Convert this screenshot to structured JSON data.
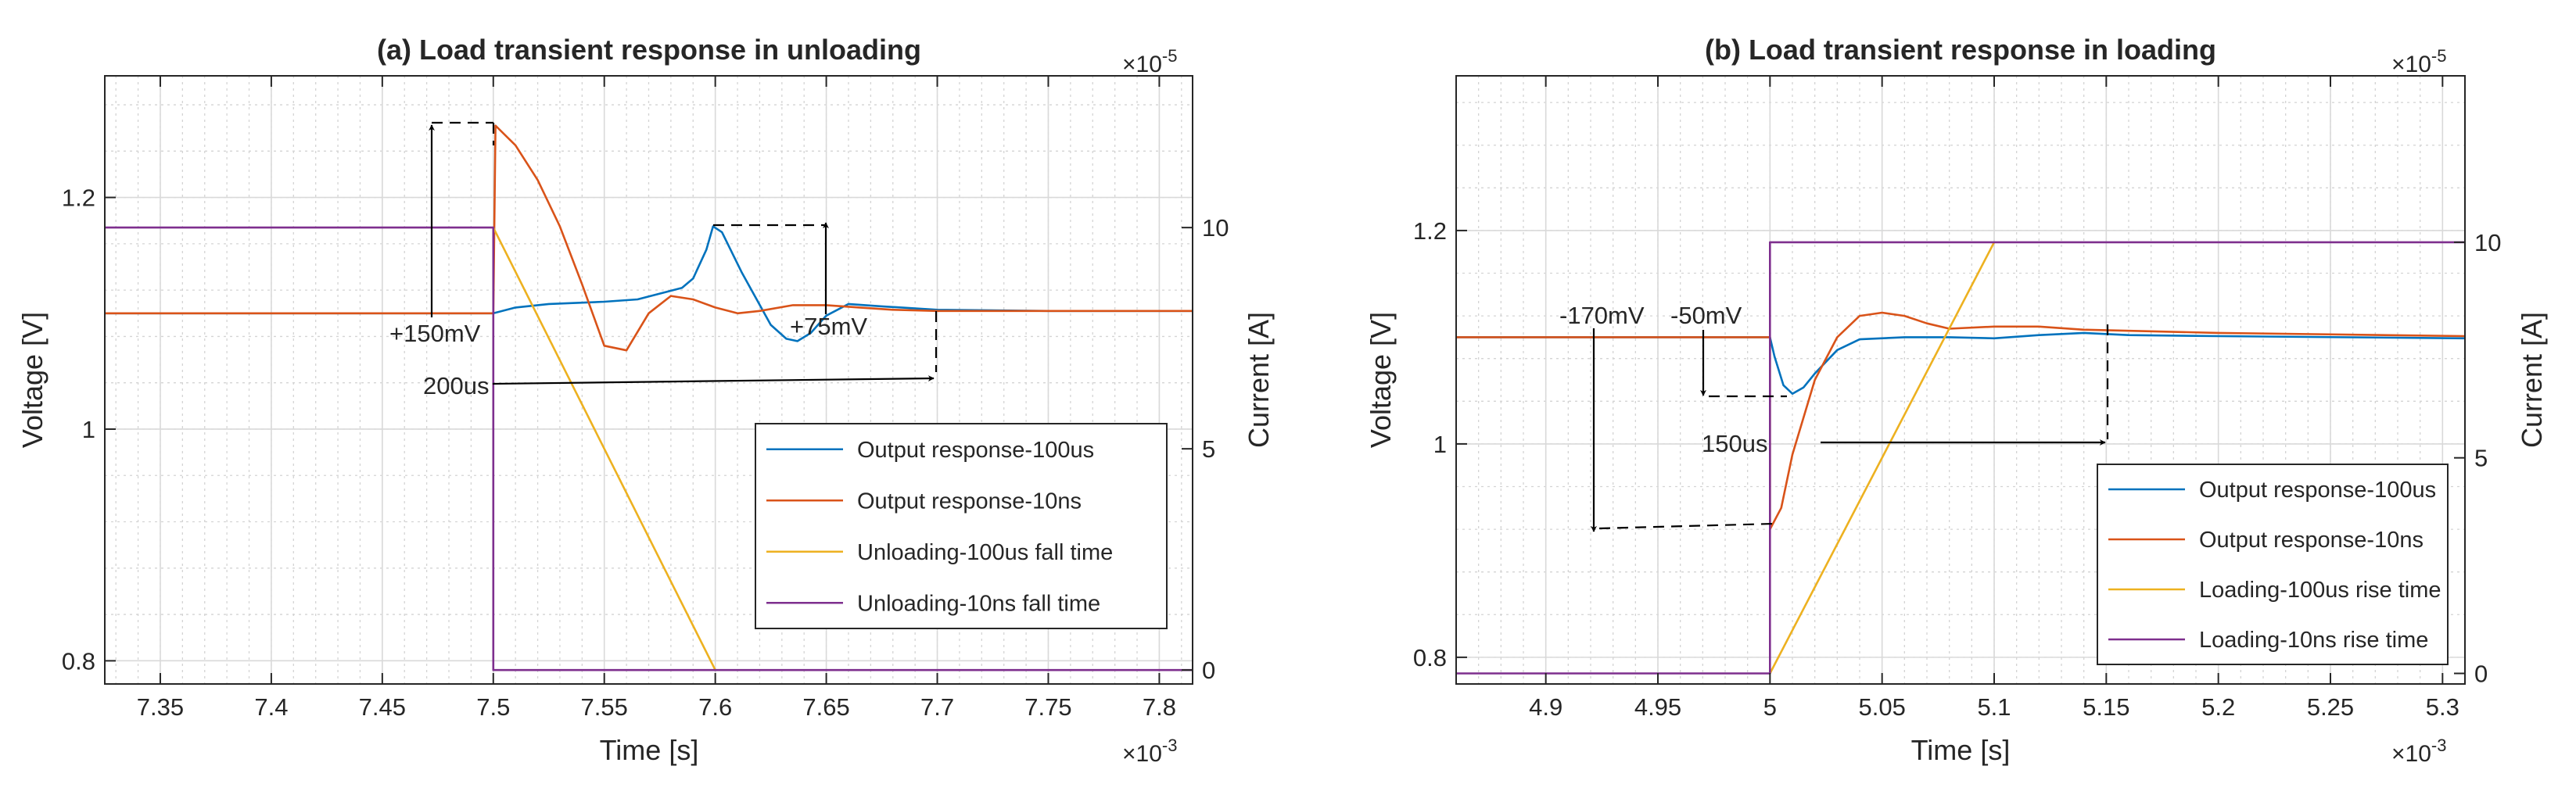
{
  "chart_data": [
    {
      "type": "line",
      "title": "(a) Load transient response in unloading",
      "xlabel": "Time [s]",
      "ylabel_left": "Voltage [V]",
      "ylabel_right": "Current [A]",
      "x_exponent_base": "×10",
      "x_exponent_power": "-3",
      "right_exponent_base": "×10",
      "right_exponent_power": "-5",
      "xlim": [
        7.325,
        7.815
      ],
      "ylim_left": [
        0.78,
        1.305
      ],
      "ylim_right": [
        -0.315,
        13.43
      ],
      "x_ticks": [
        7.35,
        7.4,
        7.45,
        7.5,
        7.55,
        7.6,
        7.65,
        7.7,
        7.75,
        7.8
      ],
      "x_tick_labels": [
        "7.35",
        "7.4",
        "7.45",
        "7.5",
        "7.55",
        "7.6",
        "7.65",
        "7.7",
        "7.75",
        "7.8"
      ],
      "y_left_ticks": [
        0.8,
        1,
        1.2
      ],
      "y_left_tick_labels": [
        "0.8",
        "1",
        "1.2"
      ],
      "y_right_ticks": [
        0,
        5,
        10
      ],
      "y_right_tick_labels": [
        "0",
        "5",
        "10"
      ],
      "legend_position": "bottom-right",
      "series": [
        {
          "name": "Output response-100us",
          "color": "#0072BD",
          "axis": "left",
          "x": [
            7.325,
            7.5,
            7.51,
            7.525,
            7.55,
            7.565,
            7.575,
            7.585,
            7.59,
            7.596,
            7.599,
            7.603,
            7.612,
            7.625,
            7.632,
            7.637,
            7.643,
            7.65,
            7.66,
            7.675,
            7.7,
            7.75,
            7.815
          ],
          "y": [
            1.1,
            1.1,
            1.105,
            1.108,
            1.11,
            1.112,
            1.117,
            1.122,
            1.13,
            1.155,
            1.175,
            1.17,
            1.135,
            1.09,
            1.078,
            1.076,
            1.083,
            1.098,
            1.108,
            1.106,
            1.103,
            1.102,
            1.102
          ]
        },
        {
          "name": "Output response-10ns",
          "color": "#D95319",
          "axis": "left",
          "x": [
            7.325,
            7.5,
            7.501,
            7.51,
            7.52,
            7.53,
            7.54,
            7.55,
            7.56,
            7.57,
            7.58,
            7.59,
            7.6,
            7.61,
            7.62,
            7.635,
            7.65,
            7.665,
            7.68,
            7.7,
            7.75,
            7.815
          ],
          "y": [
            1.1,
            1.1,
            1.262,
            1.245,
            1.215,
            1.175,
            1.125,
            1.072,
            1.068,
            1.1,
            1.115,
            1.112,
            1.105,
            1.1,
            1.102,
            1.107,
            1.107,
            1.105,
            1.103,
            1.102,
            1.102,
            1.102
          ]
        },
        {
          "name": "Unloading-100us fall time",
          "color": "#EDB120",
          "axis": "right",
          "x": [
            7.5,
            7.6
          ],
          "y": [
            10,
            0
          ]
        },
        {
          "name": "Unloading-10ns fall time",
          "color": "#7E2F8E",
          "axis": "right",
          "x": [
            7.325,
            7.5,
            7.5,
            7.815
          ],
          "y": [
            10,
            10,
            0,
            0
          ]
        }
      ],
      "annotations": [
        {
          "label": "+150mV"
        },
        {
          "label": "+75mV"
        },
        {
          "label": "200us"
        }
      ]
    },
    {
      "type": "line",
      "title": "(b) Load transient response in loading",
      "xlabel": "Time [s]",
      "ylabel_left": "Voltage [V]",
      "ylabel_right": "Current [A]",
      "x_exponent_base": "×10",
      "x_exponent_power": "-3",
      "right_exponent_base": "×10",
      "right_exponent_power": "-5",
      "xlim": [
        4.86,
        5.31
      ],
      "ylim_left": [
        0.775,
        1.345
      ],
      "ylim_right": [
        -0.245,
        13.86
      ],
      "x_ticks": [
        4.9,
        4.95,
        5,
        5.05,
        5.1,
        5.15,
        5.2,
        5.25,
        5.3
      ],
      "x_tick_labels": [
        "4.9",
        "4.95",
        "5",
        "5.05",
        "5.1",
        "5.15",
        "5.2",
        "5.25",
        "5.3"
      ],
      "y_left_ticks": [
        0.8,
        1,
        1.2
      ],
      "y_left_tick_labels": [
        "0.8",
        "1",
        "1.2"
      ],
      "y_right_ticks": [
        0,
        5,
        10
      ],
      "y_right_tick_labels": [
        "0",
        "5",
        "10"
      ],
      "legend_position": "bottom-right",
      "series": [
        {
          "name": "Output response-100us",
          "color": "#0072BD",
          "axis": "left",
          "x": [
            4.86,
            5.0,
            5.002,
            5.006,
            5.01,
            5.015,
            5.02,
            5.03,
            5.04,
            5.06,
            5.08,
            5.1,
            5.12,
            5.14,
            5.16,
            5.2,
            5.31
          ],
          "y": [
            1.1,
            1.1,
            1.082,
            1.055,
            1.047,
            1.053,
            1.066,
            1.088,
            1.098,
            1.1,
            1.1,
            1.099,
            1.102,
            1.104,
            1.102,
            1.101,
            1.099
          ]
        },
        {
          "name": "Output response-10ns",
          "color": "#D95319",
          "axis": "left",
          "x": [
            4.86,
            5.0,
            5.0,
            5.005,
            5.01,
            5.02,
            5.03,
            5.04,
            5.05,
            5.06,
            5.07,
            5.08,
            5.1,
            5.12,
            5.14,
            5.2,
            5.31
          ],
          "y": [
            1.1,
            1.1,
            0.92,
            0.94,
            0.99,
            1.06,
            1.1,
            1.12,
            1.123,
            1.12,
            1.113,
            1.108,
            1.11,
            1.11,
            1.107,
            1.104,
            1.101
          ]
        },
        {
          "name": "Loading-100us rise time",
          "color": "#EDB120",
          "axis": "right",
          "x": [
            5.0,
            5.1
          ],
          "y": [
            0,
            10
          ]
        },
        {
          "name": "Loading-10ns rise time",
          "color": "#7E2F8E",
          "axis": "right",
          "x": [
            4.86,
            5.0,
            5.0,
            5.31
          ],
          "y": [
            0,
            0,
            10,
            10
          ]
        }
      ],
      "annotations": [
        {
          "label": "-170mV"
        },
        {
          "label": "-50mV"
        },
        {
          "label": "150us"
        }
      ]
    }
  ]
}
